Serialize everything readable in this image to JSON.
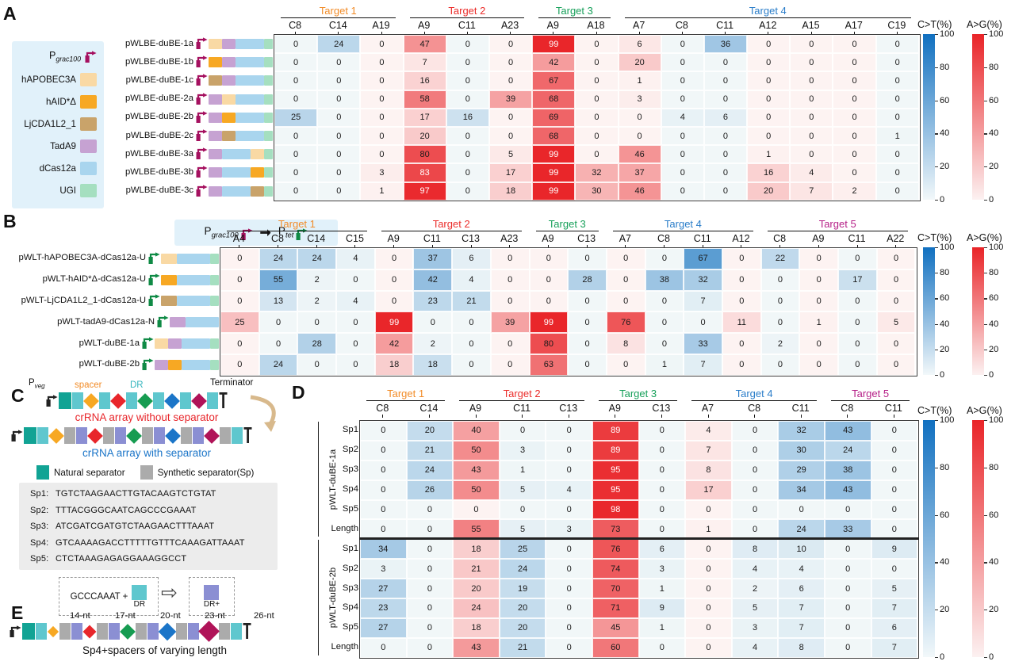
{
  "scales": {
    "ct_label": "C>T(%)",
    "ag_label": "A>G(%)",
    "ticks": [
      100,
      80,
      60,
      40,
      20,
      0
    ],
    "blue_hi": "#1170C0",
    "blue_lo": "#F1F7F8",
    "red_hi": "#E92428",
    "red_lo": "#FDF3F2"
  },
  "construct_colors": {
    "Pgrac100": "#A5105F",
    "Ptet": "#0F8A45",
    "hAPOBEC3A": "#F9D9A4",
    "hAID*Δ": "#F7A823",
    "LjCDA1L2_1": "#C9A36A",
    "TadA9": "#C6A2D2",
    "dCas12a": "#A9D5EE",
    "UGI": "#A5DFC0"
  },
  "panelA": {
    "label": "A",
    "legend": {
      "promoter": {
        "base": "P",
        "sub": "grac100"
      },
      "items": [
        "hAPOBEC3A",
        "hAID*Δ",
        "LjCDA1L2_1",
        "TadA9",
        "dCas12a",
        "UGI"
      ]
    },
    "targets": [
      {
        "name": "Target 1",
        "color": "#F28C28",
        "cols": [
          "C8",
          "C14",
          "A19"
        ]
      },
      {
        "name": "Target 2",
        "color": "#EB2D2A",
        "cols": [
          "A9",
          "C11",
          "A23"
        ]
      },
      {
        "name": "Target 3",
        "color": "#17A05A",
        "cols": [
          "A9",
          "A18"
        ]
      },
      {
        "name": "Target 4",
        "color": "#2A7DC9",
        "cols": [
          "A7",
          "C8",
          "C11",
          "A12",
          "A15",
          "A17",
          "C19"
        ]
      }
    ],
    "rows": [
      {
        "label": "pWLBE-duBE-1a",
        "segments": [
          "hAPOBEC3A",
          "TadA9",
          "dCas12a",
          "UGI"
        ],
        "values": [
          0,
          24,
          0,
          47,
          0,
          0,
          99,
          0,
          6,
          0,
          36,
          0,
          0,
          0,
          0
        ]
      },
      {
        "label": "pWLBE-duBE-1b",
        "segments": [
          "hAID*Δ",
          "TadA9",
          "dCas12a",
          "UGI"
        ],
        "values": [
          0,
          0,
          0,
          7,
          0,
          0,
          42,
          0,
          20,
          0,
          0,
          0,
          0,
          0,
          0
        ]
      },
      {
        "label": "pWLBE-duBE-1c",
        "segments": [
          "LjCDA1L2_1",
          "TadA9",
          "dCas12a",
          "UGI"
        ],
        "values": [
          0,
          0,
          0,
          16,
          0,
          0,
          67,
          0,
          1,
          0,
          0,
          0,
          0,
          0,
          0
        ]
      },
      {
        "label": "pWLBE-duBE-2a",
        "segments": [
          "TadA9",
          "hAPOBEC3A",
          "dCas12a",
          "UGI"
        ],
        "values": [
          0,
          0,
          0,
          58,
          0,
          39,
          68,
          0,
          3,
          0,
          0,
          0,
          0,
          0,
          0
        ]
      },
      {
        "label": "pWLBE-duBE-2b",
        "segments": [
          "TadA9",
          "hAID*Δ",
          "dCas12a",
          "UGI"
        ],
        "values": [
          25,
          0,
          0,
          17,
          16,
          0,
          69,
          0,
          0,
          4,
          6,
          0,
          0,
          0,
          0
        ]
      },
      {
        "label": "pWLBE-duBE-2c",
        "segments": [
          "TadA9",
          "LjCDA1L2_1",
          "dCas12a",
          "UGI"
        ],
        "values": [
          0,
          0,
          0,
          20,
          0,
          0,
          68,
          0,
          0,
          0,
          0,
          0,
          0,
          0,
          1
        ]
      },
      {
        "label": "pWLBE-duBE-3a",
        "segments": [
          "TadA9",
          "dCas12a",
          "hAPOBEC3A",
          "UGI"
        ],
        "values": [
          0,
          0,
          0,
          80,
          0,
          5,
          99,
          0,
          46,
          0,
          0,
          1,
          0,
          0,
          0
        ]
      },
      {
        "label": "pWLBE-duBE-3b",
        "segments": [
          "TadA9",
          "dCas12a",
          "hAID*Δ",
          "UGI"
        ],
        "values": [
          0,
          0,
          3,
          83,
          0,
          17,
          99,
          32,
          37,
          0,
          0,
          16,
          4,
          0,
          0
        ]
      },
      {
        "label": "pWLBE-duBE-3c",
        "segments": [
          "TadA9",
          "dCas12a",
          "LjCDA1L2_1",
          "UGI"
        ],
        "values": [
          0,
          0,
          1,
          97,
          0,
          18,
          99,
          30,
          46,
          0,
          0,
          20,
          7,
          2,
          0
        ]
      }
    ]
  },
  "panelB": {
    "label": "B",
    "swap": {
      "from": {
        "base": "P",
        "sub": "grac100"
      },
      "to": {
        "base": "P",
        "sub": "tet"
      },
      "arrow": "➞"
    },
    "targets": [
      {
        "name": "Target 1",
        "color": "#F28C28",
        "cols": [
          "A4",
          "C8",
          "C14",
          "C15"
        ]
      },
      {
        "name": "Target 2",
        "color": "#EB2D2A",
        "cols": [
          "A9",
          "C11",
          "C13",
          "A23"
        ]
      },
      {
        "name": "Target 3",
        "color": "#17A05A",
        "cols": [
          "A9",
          "C13"
        ]
      },
      {
        "name": "Target 4",
        "color": "#2A7DC9",
        "cols": [
          "A7",
          "C8",
          "C11",
          "A12"
        ]
      },
      {
        "name": "Target 5",
        "color": "#B51F87",
        "cols": [
          "C8",
          "A9",
          "C11",
          "A22"
        ]
      }
    ],
    "rows": [
      {
        "label": "pWLT-hAPOBEC3A-dCas12a-U",
        "segments": [
          "hAPOBEC3A",
          "dCas12a",
          "UGI"
        ],
        "values": [
          0,
          24,
          24,
          4,
          0,
          37,
          6,
          0,
          0,
          0,
          0,
          0,
          67,
          0,
          22,
          0,
          0,
          0
        ]
      },
      {
        "label": "pWLT-hAID*Δ-dCas12a-U",
        "segments": [
          "hAID*Δ",
          "dCas12a",
          "UGI"
        ],
        "values": [
          0,
          55,
          2,
          0,
          0,
          42,
          4,
          0,
          0,
          28,
          0,
          38,
          32,
          0,
          0,
          0,
          17,
          0
        ]
      },
      {
        "label": "pWLT-LjCDA1L2_1-dCas12a-U",
        "segments": [
          "LjCDA1L2_1",
          "dCas12a",
          "UGI"
        ],
        "values": [
          0,
          13,
          2,
          4,
          0,
          23,
          21,
          0,
          0,
          0,
          0,
          0,
          7,
          0,
          0,
          0,
          0,
          0
        ]
      },
      {
        "label": "pWLT-tadA9-dCas12a-N",
        "segments": [
          "TadA9",
          "dCas12a"
        ],
        "values": [
          25,
          0,
          0,
          0,
          99,
          0,
          0,
          39,
          99,
          0,
          76,
          0,
          0,
          11,
          0,
          1,
          0,
          5
        ]
      },
      {
        "label": "pWLT-duBE-1a",
        "segments": [
          "hAPOBEC3A",
          "TadA9",
          "dCas12a",
          "UGI"
        ],
        "values": [
          0,
          0,
          28,
          0,
          42,
          2,
          0,
          0,
          80,
          0,
          8,
          0,
          33,
          0,
          2,
          0,
          0,
          0
        ]
      },
      {
        "label": "pWLT-duBE-2b",
        "segments": [
          "TadA9",
          "hAID*Δ",
          "dCas12a",
          "UGI"
        ],
        "values": [
          0,
          24,
          0,
          0,
          18,
          18,
          0,
          0,
          63,
          0,
          0,
          1,
          7,
          0,
          0,
          0,
          0,
          0
        ]
      }
    ]
  },
  "panelC": {
    "label": "C",
    "top_labels": {
      "pveg": {
        "base": "P",
        "sub": "veg"
      },
      "spacer": "spacer",
      "dr": "DR",
      "terminator": "Terminator"
    },
    "captions": {
      "without": "crRNA array without separator",
      "with": "crRNA array with separator"
    },
    "caption_colors": {
      "without": "#E8262B",
      "with": "#1B75C8"
    },
    "separator_legend": [
      {
        "label": "Natural separator",
        "color": "#11A394"
      },
      {
        "label": "Synthetic separator(Sp)",
        "color": "#ABABAB"
      }
    ],
    "array_colors": {
      "natsep": "#11A394",
      "dr": "#5FC7CE",
      "sep": "#ABABAB",
      "drplus": "#8B8FD3"
    },
    "spacer_colors": [
      "#F7A823",
      "#E8262B",
      "#169C51",
      "#1B75C8",
      "#B01358"
    ],
    "array_without": [
      "P",
      "N",
      "D",
      "S0",
      "D",
      "S1",
      "D",
      "S2",
      "D",
      "S3",
      "D",
      "S4",
      "D",
      "T"
    ],
    "array_with": [
      "P",
      "N",
      "D",
      "S0",
      "G",
      "R",
      "S1",
      "G",
      "R",
      "S2",
      "G",
      "R",
      "S3",
      "G",
      "R",
      "S4",
      "G",
      "D",
      "T"
    ],
    "sequences": [
      {
        "name": "Sp1:",
        "seq": "TGTCTAAGAACTTGTACAAGTCTGTAT"
      },
      {
        "name": "Sp2:",
        "seq": "TTTACGGGCAATCAGCCCGAAAT"
      },
      {
        "name": "Sp3:",
        "seq": "ATCGATCGATGTCTAAGAACTTTAAAT"
      },
      {
        "name": "Sp4:",
        "seq": "GTCAAAAGACCTTTTTGTTTCAAAGATTAAAT"
      },
      {
        "name": "Sp5:",
        "seq": "CTCTAAAGAGAGGAAAGGCCT"
      }
    ],
    "dr_swap": {
      "text": "GCCCAAAT +",
      "dr_label": "DR",
      "drplus_label": "DR+",
      "arrow": "⇨"
    }
  },
  "panelD": {
    "label": "D",
    "targets": [
      {
        "name": "Target 1",
        "color": "#F28C28",
        "cols": [
          "C8",
          "C14"
        ]
      },
      {
        "name": "Target 2",
        "color": "#EB2D2A",
        "cols": [
          "A9",
          "C11",
          "C13"
        ]
      },
      {
        "name": "Target 3",
        "color": "#17A05A",
        "cols": [
          "A9",
          "C13"
        ]
      },
      {
        "name": "Target 4",
        "color": "#2A7DC9",
        "cols": [
          "A7",
          "C8",
          "C11"
        ]
      },
      {
        "name": "Target 5",
        "color": "#B51F87",
        "cols": [
          "C8",
          "C11"
        ]
      }
    ],
    "blocks": [
      {
        "label": "pWLT-duBE-1a",
        "rows": [
          {
            "label": "Sp1",
            "values": [
              0,
              20,
              40,
              0,
              0,
              89,
              0,
              4,
              0,
              32,
              43,
              0
            ]
          },
          {
            "label": "Sp2",
            "values": [
              0,
              21,
              50,
              3,
              0,
              89,
              0,
              7,
              0,
              30,
              24,
              0
            ]
          },
          {
            "label": "Sp3",
            "values": [
              0,
              24,
              43,
              1,
              0,
              95,
              0,
              8,
              0,
              29,
              38,
              0
            ]
          },
          {
            "label": "Sp4",
            "values": [
              0,
              26,
              50,
              5,
              4,
              95,
              0,
              17,
              0,
              34,
              43,
              0
            ]
          },
          {
            "label": "Sp5",
            "values": [
              0,
              0,
              0,
              0,
              0,
              98,
              0,
              0,
              0,
              0,
              0,
              0
            ]
          },
          {
            "label": "Length",
            "values": [
              0,
              0,
              55,
              5,
              3,
              73,
              0,
              1,
              0,
              24,
              33,
              0
            ]
          }
        ]
      },
      {
        "label": "pWLT-duBE-2b",
        "rows": [
          {
            "label": "Sp1",
            "values": [
              34,
              0,
              18,
              25,
              0,
              76,
              6,
              0,
              8,
              10,
              0,
              9
            ]
          },
          {
            "label": "Sp2",
            "values": [
              3,
              0,
              21,
              24,
              0,
              74,
              3,
              0,
              4,
              4,
              0,
              0
            ]
          },
          {
            "label": "Sp3",
            "values": [
              27,
              0,
              20,
              19,
              0,
              70,
              1,
              0,
              2,
              6,
              0,
              5
            ]
          },
          {
            "label": "Sp4",
            "values": [
              23,
              0,
              24,
              20,
              0,
              71,
              9,
              0,
              5,
              7,
              0,
              7
            ]
          },
          {
            "label": "Sp5",
            "values": [
              27,
              0,
              18,
              20,
              0,
              45,
              1,
              0,
              3,
              7,
              0,
              6
            ]
          },
          {
            "label": "Length",
            "values": [
              0,
              0,
              43,
              21,
              0,
              60,
              0,
              0,
              4,
              8,
              0,
              7
            ]
          }
        ]
      }
    ]
  },
  "panelE": {
    "label": "E",
    "nt_labels": [
      "14-nt",
      "17-nt",
      "20-nt",
      "23-nt",
      "26-nt"
    ],
    "caption": "Sp4+spacers of varying length"
  }
}
